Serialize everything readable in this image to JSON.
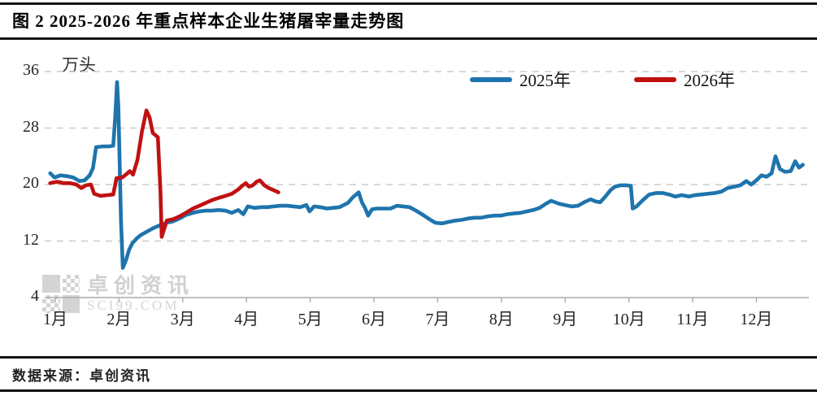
{
  "title": "图 2 2025-2026 年重点样本企业生猪屠宰量走势图",
  "footer": {
    "source_label": "数据来源：卓创资讯"
  },
  "watermark": {
    "name": "卓创资讯",
    "site": "SCI99.COM"
  },
  "colors": {
    "series_2025": "#1E74AD",
    "series_2026": "#C01111",
    "grid": "#CBCBCB",
    "axis": "#ABABAB",
    "text": "#262626"
  },
  "chart_data": {
    "type": "line",
    "unit_label": "万头",
    "x_tick_labels": [
      "1月",
      "2月",
      "3月",
      "4月",
      "5月",
      "6月",
      "7月",
      "8月",
      "9月",
      "10月",
      "11月",
      "12月"
    ],
    "y_ticks": [
      4,
      12,
      20,
      28,
      36
    ],
    "ylim": [
      4,
      36
    ],
    "xlim": [
      0.9,
      13.0
    ],
    "grid": "horizontal-dashed",
    "legend_position": "top-right",
    "x_unit": "month (1 = 1月 ... 12 = 12月)",
    "series": [
      {
        "name": "2025年",
        "color_key": "series_2025",
        "points": [
          [
            0.92,
            21.6
          ],
          [
            0.99,
            21.0
          ],
          [
            1.08,
            21.3
          ],
          [
            1.18,
            21.2
          ],
          [
            1.28,
            21.0
          ],
          [
            1.38,
            20.5
          ],
          [
            1.46,
            20.6
          ],
          [
            1.54,
            21.3
          ],
          [
            1.59,
            22.3
          ],
          [
            1.64,
            25.3
          ],
          [
            1.74,
            25.4
          ],
          [
            1.84,
            25.4
          ],
          [
            1.91,
            25.5
          ],
          [
            1.94,
            29.5
          ],
          [
            1.97,
            34.5
          ],
          [
            1.99,
            31.0
          ],
          [
            2.03,
            15.0
          ],
          [
            2.06,
            8.2
          ],
          [
            2.11,
            9.3
          ],
          [
            2.16,
            10.8
          ],
          [
            2.21,
            11.7
          ],
          [
            2.28,
            12.4
          ],
          [
            2.35,
            12.9
          ],
          [
            2.43,
            13.3
          ],
          [
            2.51,
            13.7
          ],
          [
            2.58,
            14.0
          ],
          [
            2.66,
            14.3
          ],
          [
            2.75,
            14.6
          ],
          [
            2.85,
            14.8
          ],
          [
            2.95,
            15.2
          ],
          [
            3.05,
            15.7
          ],
          [
            3.16,
            16.0
          ],
          [
            3.26,
            16.2
          ],
          [
            3.36,
            16.3
          ],
          [
            3.46,
            16.3
          ],
          [
            3.56,
            16.4
          ],
          [
            3.67,
            16.3
          ],
          [
            3.77,
            16.0
          ],
          [
            3.87,
            16.4
          ],
          [
            3.95,
            15.8
          ],
          [
            4.02,
            16.9
          ],
          [
            4.13,
            16.7
          ],
          [
            4.23,
            16.8
          ],
          [
            4.33,
            16.8
          ],
          [
            4.43,
            16.9
          ],
          [
            4.53,
            17.0
          ],
          [
            4.64,
            17.0
          ],
          [
            4.74,
            16.9
          ],
          [
            4.84,
            16.8
          ],
          [
            4.94,
            17.1
          ],
          [
            4.99,
            16.2
          ],
          [
            5.06,
            16.9
          ],
          [
            5.16,
            16.8
          ],
          [
            5.26,
            16.6
          ],
          [
            5.36,
            16.7
          ],
          [
            5.46,
            16.8
          ],
          [
            5.59,
            17.4
          ],
          [
            5.67,
            18.2
          ],
          [
            5.76,
            18.9
          ],
          [
            5.81,
            17.5
          ],
          [
            5.86,
            16.7
          ],
          [
            5.91,
            15.6
          ],
          [
            5.97,
            16.5
          ],
          [
            6.05,
            16.6
          ],
          [
            6.15,
            16.6
          ],
          [
            6.26,
            16.6
          ],
          [
            6.36,
            17.0
          ],
          [
            6.46,
            16.9
          ],
          [
            6.56,
            16.8
          ],
          [
            6.66,
            16.3
          ],
          [
            6.77,
            15.7
          ],
          [
            6.87,
            15.1
          ],
          [
            6.96,
            14.6
          ],
          [
            7.07,
            14.5
          ],
          [
            7.17,
            14.7
          ],
          [
            7.28,
            14.9
          ],
          [
            7.38,
            15.0
          ],
          [
            7.48,
            15.2
          ],
          [
            7.58,
            15.3
          ],
          [
            7.68,
            15.3
          ],
          [
            7.79,
            15.5
          ],
          [
            7.89,
            15.6
          ],
          [
            7.99,
            15.6
          ],
          [
            8.09,
            15.8
          ],
          [
            8.19,
            15.9
          ],
          [
            8.3,
            16.0
          ],
          [
            8.4,
            16.2
          ],
          [
            8.5,
            16.4
          ],
          [
            8.6,
            16.7
          ],
          [
            8.7,
            17.3
          ],
          [
            8.78,
            17.7
          ],
          [
            8.9,
            17.3
          ],
          [
            9.0,
            17.1
          ],
          [
            9.1,
            16.9
          ],
          [
            9.2,
            17.0
          ],
          [
            9.3,
            17.5
          ],
          [
            9.4,
            17.9
          ],
          [
            9.48,
            17.6
          ],
          [
            9.55,
            17.5
          ],
          [
            9.63,
            18.3
          ],
          [
            9.71,
            19.2
          ],
          [
            9.78,
            19.7
          ],
          [
            9.87,
            19.9
          ],
          [
            9.96,
            19.9
          ],
          [
            10.03,
            19.8
          ],
          [
            10.06,
            16.6
          ],
          [
            10.12,
            16.9
          ],
          [
            10.22,
            17.8
          ],
          [
            10.32,
            18.6
          ],
          [
            10.43,
            18.8
          ],
          [
            10.53,
            18.8
          ],
          [
            10.63,
            18.6
          ],
          [
            10.73,
            18.3
          ],
          [
            10.83,
            18.5
          ],
          [
            10.94,
            18.3
          ],
          [
            11.04,
            18.5
          ],
          [
            11.14,
            18.6
          ],
          [
            11.24,
            18.7
          ],
          [
            11.35,
            18.8
          ],
          [
            11.45,
            19.0
          ],
          [
            11.55,
            19.5
          ],
          [
            11.65,
            19.7
          ],
          [
            11.75,
            19.9
          ],
          [
            11.84,
            20.5
          ],
          [
            11.92,
            20.0
          ],
          [
            12.0,
            20.6
          ],
          [
            12.08,
            21.3
          ],
          [
            12.16,
            21.1
          ],
          [
            12.24,
            21.6
          ],
          [
            12.3,
            24.0
          ],
          [
            12.37,
            22.2
          ],
          [
            12.45,
            21.8
          ],
          [
            12.54,
            21.9
          ],
          [
            12.61,
            23.3
          ],
          [
            12.67,
            22.4
          ],
          [
            12.73,
            22.8
          ]
        ]
      },
      {
        "name": "2026年",
        "color_key": "series_2026",
        "points": [
          [
            0.92,
            20.2
          ],
          [
            1.03,
            20.4
          ],
          [
            1.13,
            20.2
          ],
          [
            1.23,
            20.2
          ],
          [
            1.33,
            20.0
          ],
          [
            1.41,
            19.5
          ],
          [
            1.48,
            19.9
          ],
          [
            1.56,
            20.0
          ],
          [
            1.61,
            18.7
          ],
          [
            1.71,
            18.4
          ],
          [
            1.82,
            18.5
          ],
          [
            1.91,
            18.6
          ],
          [
            1.96,
            20.9
          ],
          [
            2.05,
            21.0
          ],
          [
            2.12,
            21.5
          ],
          [
            2.17,
            21.9
          ],
          [
            2.22,
            21.4
          ],
          [
            2.29,
            23.5
          ],
          [
            2.36,
            27.5
          ],
          [
            2.43,
            30.5
          ],
          [
            2.48,
            29.5
          ],
          [
            2.53,
            27.3
          ],
          [
            2.61,
            26.7
          ],
          [
            2.65,
            19.0
          ],
          [
            2.67,
            12.6
          ],
          [
            2.75,
            14.9
          ],
          [
            2.85,
            15.1
          ],
          [
            2.95,
            15.5
          ],
          [
            3.05,
            16.0
          ],
          [
            3.16,
            16.6
          ],
          [
            3.26,
            17.0
          ],
          [
            3.36,
            17.4
          ],
          [
            3.46,
            17.8
          ],
          [
            3.56,
            18.1
          ],
          [
            3.67,
            18.4
          ],
          [
            3.77,
            18.7
          ],
          [
            3.87,
            19.3
          ],
          [
            3.93,
            19.8
          ],
          [
            3.99,
            20.2
          ],
          [
            4.04,
            19.7
          ],
          [
            4.1,
            19.9
          ],
          [
            4.16,
            20.4
          ],
          [
            4.21,
            20.6
          ],
          [
            4.28,
            19.9
          ],
          [
            4.35,
            19.5
          ],
          [
            4.43,
            19.2
          ],
          [
            4.5,
            18.9
          ]
        ]
      }
    ]
  }
}
